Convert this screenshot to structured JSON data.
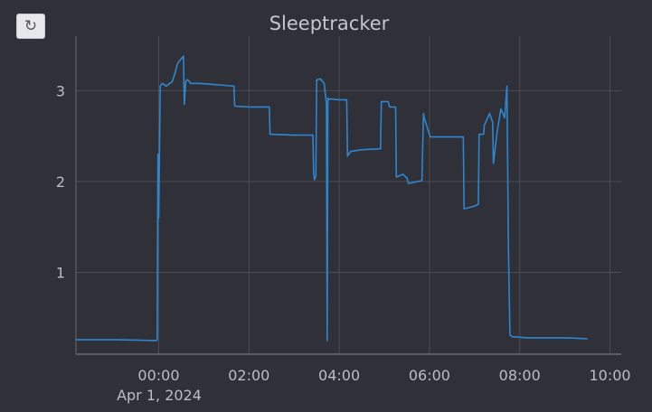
{
  "toolbar": {
    "reset_icon": "↻"
  },
  "colors": {
    "background": "#2f3038",
    "grid": "#4c4d55",
    "axis": "#6a6b73",
    "series": "#2f86cf"
  },
  "chart_data": {
    "type": "line",
    "title": "Sleeptracker",
    "xlabel": "",
    "ylabel": "",
    "xlim": [
      "2024-03-31T22:10",
      "2024-04-01T10:15"
    ],
    "ylim": [
      0.1,
      3.6
    ],
    "grid": true,
    "legend": "none",
    "xticks": [
      {
        "value": "2024-04-01T00:00",
        "label": "00:00"
      },
      {
        "value": "2024-04-01T02:00",
        "label": "02:00"
      },
      {
        "value": "2024-04-01T04:00",
        "label": "04:00"
      },
      {
        "value": "2024-04-01T06:00",
        "label": "06:00"
      },
      {
        "value": "2024-04-01T08:00",
        "label": "08:00"
      },
      {
        "value": "2024-04-01T10:00",
        "label": "10:00"
      }
    ],
    "x_sublabel": "Apr 1, 2024",
    "yticks": [
      1,
      2,
      3
    ],
    "series": [
      {
        "x": [
          "2024-03-31T22:10",
          "2024-03-31T23:00",
          "2024-03-31T23:57",
          "2024-03-31T23:58",
          "2024-03-31T23:59",
          "2024-04-01T00:00",
          "2024-04-01T00:02",
          "2024-04-01T00:05",
          "2024-04-01T00:10",
          "2024-04-01T00:18",
          "2024-04-01T00:22",
          "2024-04-01T00:25",
          "2024-04-01T00:30",
          "2024-04-01T00:33",
          "2024-04-01T00:34",
          "2024-04-01T00:36",
          "2024-04-01T00:38",
          "2024-04-01T00:41",
          "2024-04-01T00:42",
          "2024-04-01T00:55",
          "2024-04-01T01:10",
          "2024-04-01T01:40",
          "2024-04-01T01:41",
          "2024-04-01T02:00",
          "2024-04-01T02:27",
          "2024-04-01T02:28",
          "2024-04-01T03:00",
          "2024-04-01T03:25",
          "2024-04-01T03:26",
          "2024-04-01T03:27",
          "2024-04-01T03:29",
          "2024-04-01T03:30",
          "2024-04-01T03:35",
          "2024-04-01T03:40",
          "2024-04-01T03:43",
          "2024-04-01T03:44",
          "2024-04-01T03:45",
          "2024-04-01T03:46",
          "2024-04-01T03:48",
          "2024-04-01T04:00",
          "2024-04-01T04:10",
          "2024-04-01T04:11",
          "2024-04-01T04:15",
          "2024-04-01T04:30",
          "2024-04-01T04:55",
          "2024-04-01T04:56",
          "2024-04-01T05:05",
          "2024-04-01T05:07",
          "2024-04-01T05:15",
          "2024-04-01T05:16",
          "2024-04-01T05:25",
          "2024-04-01T05:30",
          "2024-04-01T05:32",
          "2024-04-01T05:33",
          "2024-04-01T05:50",
          "2024-04-01T05:52",
          "2024-04-01T05:53",
          "2024-04-01T06:00",
          "2024-04-01T06:01",
          "2024-04-01T06:03",
          "2024-04-01T06:30",
          "2024-04-01T06:45",
          "2024-04-01T06:46",
          "2024-04-01T07:00",
          "2024-04-01T07:05",
          "2024-04-01T07:06",
          "2024-04-01T07:12",
          "2024-04-01T07:13",
          "2024-04-01T07:20",
          "2024-04-01T07:24",
          "2024-04-01T07:25",
          "2024-04-01T07:30",
          "2024-04-01T07:35",
          "2024-04-01T07:40",
          "2024-04-01T07:43",
          "2024-04-01T07:45",
          "2024-04-01T07:47",
          "2024-04-01T07:49",
          "2024-04-01T07:51",
          "2024-04-01T07:53",
          "2024-04-01T07:55",
          "2024-04-01T08:10",
          "2024-04-01T08:30",
          "2024-04-01T09:00",
          "2024-04-01T09:30"
        ],
        "y": [
          0.26,
          0.26,
          0.25,
          0.26,
          2.3,
          1.6,
          3.05,
          3.08,
          3.05,
          3.1,
          3.2,
          3.3,
          3.35,
          3.38,
          2.85,
          3.1,
          3.12,
          3.1,
          3.08,
          3.08,
          3.07,
          3.05,
          2.83,
          2.82,
          2.82,
          2.52,
          2.51,
          2.51,
          2.1,
          2.02,
          2.06,
          3.12,
          3.13,
          3.08,
          2.85,
          0.25,
          2.92,
          2.9,
          2.91,
          2.9,
          2.9,
          2.28,
          2.33,
          2.35,
          2.36,
          2.88,
          2.88,
          2.82,
          2.82,
          2.05,
          2.08,
          2.04,
          1.98,
          1.98,
          2.01,
          2.75,
          2.7,
          2.52,
          2.49,
          2.49,
          2.49,
          2.49,
          1.7,
          1.73,
          1.75,
          2.52,
          2.52,
          2.62,
          2.75,
          2.65,
          2.2,
          2.55,
          2.8,
          2.7,
          3.05,
          1.3,
          0.31,
          0.3,
          0.29,
          0.29,
          0.29,
          0.28,
          0.28,
          0.28,
          0.27
        ]
      }
    ]
  }
}
